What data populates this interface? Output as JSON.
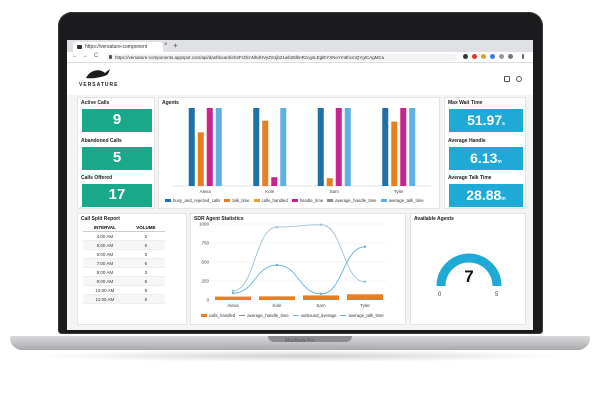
{
  "browser": {
    "tab_title": "https://versature-component",
    "tab_close": "×",
    "tab_new": "+",
    "url": "https://versature-components.appspot.com/api/dashboard/eh2FrZlcnNhdHVyZS1jb21wb25lbnRzcgsLEglEYXNoYm9hcmQYgICAgMCu",
    "nav_back": "←",
    "nav_forward": "→",
    "nav_reload": "C"
  },
  "brand": {
    "name": "VERSATURE"
  },
  "device": {
    "label": "MacBook Pro"
  },
  "kpis_left": [
    {
      "title": "Active Calls",
      "value": "9"
    },
    {
      "title": "Abandoned Calls",
      "value": "5"
    },
    {
      "title": "Calls Offered",
      "value": "17"
    }
  ],
  "kpis_right": [
    {
      "title": "Max Wait Time",
      "value": "51.97",
      "unit": "s"
    },
    {
      "title": "Average Handle",
      "value": "6.13",
      "unit": "m"
    },
    {
      "title": "Average Talk Time",
      "value": "28.88",
      "unit": "m"
    }
  ],
  "agents_panel": {
    "title": "Agents"
  },
  "call_split": {
    "title": "Call Split Report",
    "headers": [
      "INTERVAL",
      "VOLUME"
    ],
    "rows": [
      [
        "4:00 AM",
        "2"
      ],
      [
        "5:00 AM",
        "6"
      ],
      [
        "6:00 AM",
        "3"
      ],
      [
        "7:00 AM",
        "6"
      ],
      [
        "8:00 AM",
        "3"
      ],
      [
        "9:00 AM",
        "5"
      ],
      [
        "10:00 AM",
        "9"
      ],
      [
        "11:00 AM",
        "5"
      ]
    ]
  },
  "sdr_panel": {
    "title": "SDR Agent Statistics"
  },
  "available_agents": {
    "title": "Available Agents",
    "value": "7",
    "min": "0",
    "max": "5"
  },
  "colors": {
    "teal": "#19a98a",
    "blue": "#1fa9d6",
    "busy_and_rejected_calls": "#1f6fa8",
    "talk_time": "#e87e1f",
    "calls_handled": "#e0a231",
    "handle_time": "#c9248b",
    "average_handle_time": "#8d8d8d",
    "average_talk_time": "#5fb0e0"
  },
  "chart_data": [
    {
      "type": "bar",
      "categories": [
        "Alexa",
        "Kole",
        "Sam",
        "Tyler"
      ],
      "ylim": [
        0,
        80
      ],
      "series": [
        {
          "name": "busy_and_rejected_calls",
          "values": [
            80,
            80,
            80,
            80
          ]
        },
        {
          "name": "talk_time",
          "values": [
            55,
            67,
            8,
            66
          ]
        },
        {
          "name": "calls_handled",
          "values": [
            0,
            0,
            0,
            0
          ]
        },
        {
          "name": "handle_time",
          "values": [
            80,
            9,
            80,
            80
          ]
        },
        {
          "name": "average_handle_time",
          "values": [
            0,
            0,
            0,
            0
          ]
        },
        {
          "name": "average_talk_time",
          "values": [
            80,
            80,
            80,
            80
          ]
        }
      ],
      "legend": [
        "busy_and_rejected_calls",
        "talk_time",
        "calls_handled",
        "handle_time",
        "average_handle_time",
        "average_talk_time"
      ],
      "legend_placement": "bottom"
    },
    {
      "type": "bar",
      "categories": [
        "Alexa",
        "Kole",
        "Sam",
        "Tyler"
      ],
      "yticks": [
        0,
        250,
        500,
        750,
        1000
      ],
      "ylim": [
        0,
        1000
      ],
      "series": [
        {
          "name": "calls_handled",
          "values": [
            45,
            48,
            60,
            75
          ]
        },
        {
          "name": "average_handle_time",
          "values": [
            120,
            960,
            990,
            240
          ]
        },
        {
          "name": "outbound_average",
          "values": [
            0,
            0,
            0,
            0
          ]
        },
        {
          "name": "average_talk_time",
          "values": [
            90,
            460,
            80,
            700
          ]
        }
      ],
      "legend": [
        "calls_handled",
        "average_handle_time",
        "outbound_average",
        "average_talk_time"
      ],
      "legend_placement": "bottom"
    }
  ]
}
